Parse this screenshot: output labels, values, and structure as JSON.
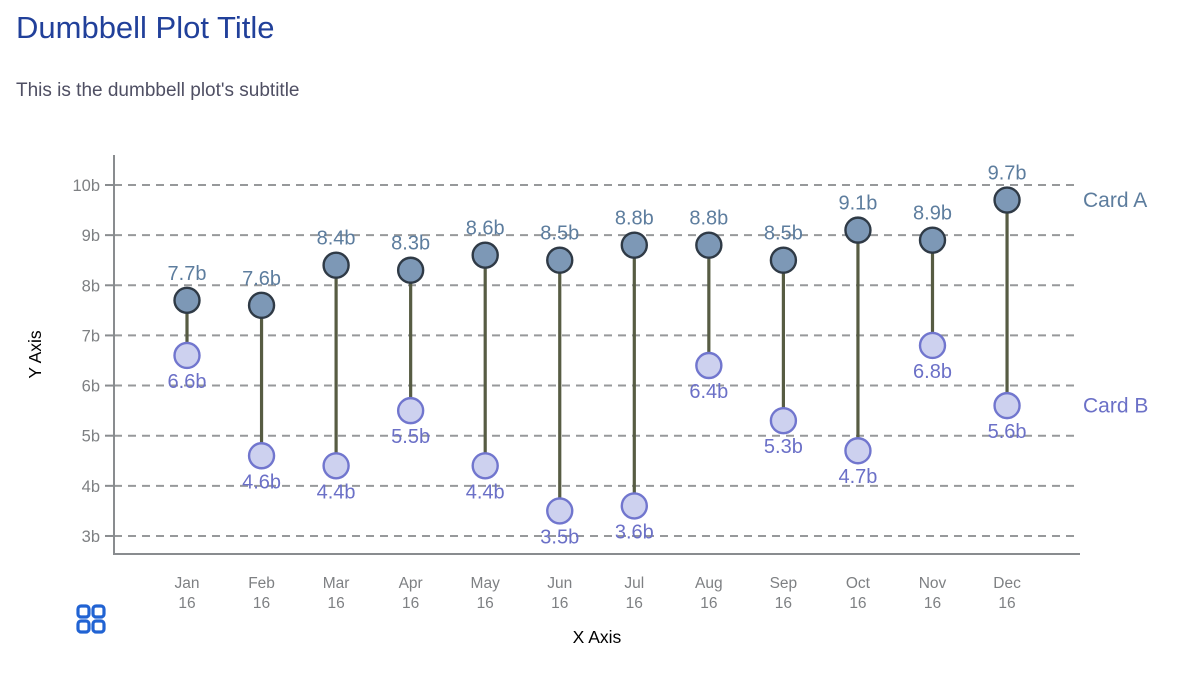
{
  "header": {
    "title": "Dumbbell Plot Title",
    "subtitle": "This is the dumbbell plot's subtitle"
  },
  "chart_data": {
    "type": "dumbbell",
    "title": "Dumbbell Plot Title",
    "subtitle": "This is the dumbbell plot's subtitle",
    "xlabel": "X Axis",
    "ylabel": "Y Axis",
    "categories": [
      "Jan 16",
      "Feb 16",
      "Mar 16",
      "Apr 16",
      "May 16",
      "Jun 16",
      "Jul 16",
      "Aug 16",
      "Sep 16",
      "Oct 16",
      "Nov 16",
      "Dec 16"
    ],
    "series": [
      {
        "name": "Card A",
        "values": [
          7.7,
          7.6,
          8.4,
          8.3,
          8.6,
          8.5,
          8.8,
          8.8,
          8.5,
          9.1,
          8.9,
          9.7
        ],
        "labels": [
          "7.7b",
          "7.6b",
          "8.4b",
          "8.3b",
          "8.6b",
          "8.5b",
          "8.8b",
          "8.8b",
          "8.5b",
          "9.1b",
          "8.9b",
          "9.7b"
        ]
      },
      {
        "name": "Card B",
        "values": [
          6.6,
          4.6,
          4.4,
          5.5,
          4.4,
          3.5,
          3.6,
          6.4,
          5.3,
          4.7,
          6.8,
          5.6
        ],
        "labels": [
          "6.6b",
          "4.6b",
          "4.4b",
          "5.5b",
          "4.4b",
          "3.5b",
          "3.6b",
          "6.4b",
          "5.3b",
          "4.7b",
          "6.8b",
          "5.6b"
        ]
      }
    ],
    "y_ticks": [
      "10b",
      "9b",
      "8b",
      "7b",
      "6b",
      "5b",
      "4b",
      "3b"
    ],
    "y_tick_values": [
      10,
      9,
      8,
      7,
      6,
      5,
      4,
      3
    ],
    "ylim": [
      3,
      10
    ],
    "grid": "horizontal-dashed",
    "legend_position": "right-inline",
    "colors": {
      "title": "#21409a",
      "subtitle": "#4f4f63",
      "series_a_fill": "#7d98b6",
      "series_a_stroke": "#2f3a46",
      "series_a_label": "#5d7d9e",
      "series_b_fill": "#cdd1ef",
      "series_b_stroke": "#7176ce",
      "series_b_label": "#6b70c7",
      "connector": "#575c43",
      "gridline": "#97999b",
      "axis_line": "#898c8f",
      "tick_text": "#7e8083",
      "axis_title_text": "#000000",
      "grid_icon": "#2163d3"
    }
  },
  "footer": {
    "grid_icon": "grid-icon"
  }
}
